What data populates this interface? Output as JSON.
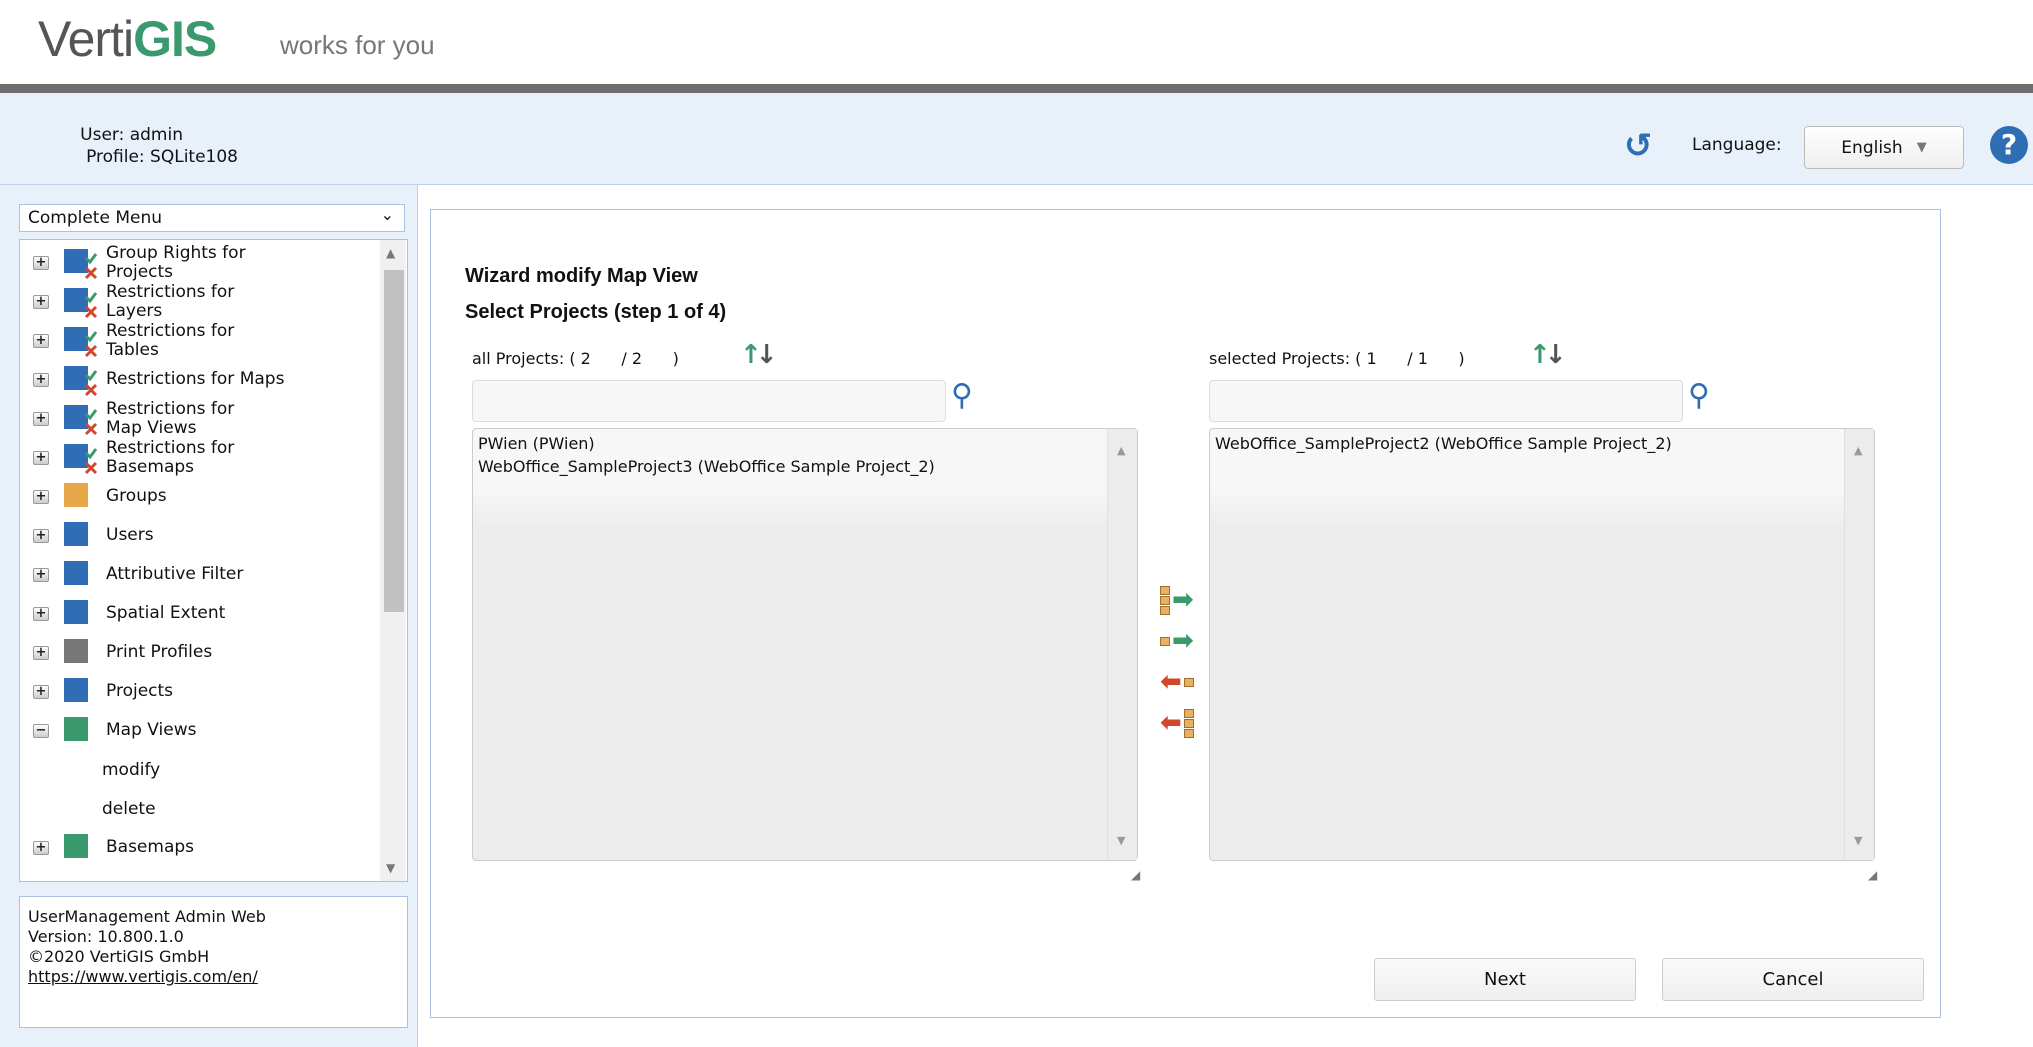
{
  "header": {
    "logo_text": "VertiGIS",
    "tagline": "works for you"
  },
  "user": {
    "user_line": "User: admin",
    "profile_line": "Profile: SQLite108"
  },
  "toolbar": {
    "refresh_icon": "refresh-icon",
    "language_label": "Language:",
    "language_value": "English",
    "help_icon": "help-icon"
  },
  "sidebar": {
    "menu_select": "Complete Menu",
    "items": [
      {
        "label": "Group Rights for Projects",
        "icon": "group-rights-projects-icon",
        "expanded": false
      },
      {
        "label": "Restrictions for Layers",
        "icon": "restrictions-layers-icon",
        "expanded": false
      },
      {
        "label": "Restrictions for Tables",
        "icon": "restrictions-tables-icon",
        "expanded": false
      },
      {
        "label": "Restrictions for Maps",
        "icon": "restrictions-maps-icon",
        "expanded": false
      },
      {
        "label": "Restrictions for Map Views",
        "icon": "restrictions-map-views-icon",
        "expanded": false
      },
      {
        "label": "Restrictions for Basemaps",
        "icon": "restrictions-basemaps-icon",
        "expanded": false
      },
      {
        "label": "Groups",
        "icon": "groups-icon",
        "expanded": false
      },
      {
        "label": "Users",
        "icon": "user-icon",
        "expanded": false
      },
      {
        "label": "Attributive Filter",
        "icon": "attributive-filter-icon",
        "expanded": false
      },
      {
        "label": "Spatial Extent",
        "icon": "spatial-extent-icon",
        "expanded": false
      },
      {
        "label": "Print Profiles",
        "icon": "printer-icon",
        "expanded": false
      },
      {
        "label": "Projects",
        "icon": "projects-icon",
        "expanded": false
      },
      {
        "label": "Map Views",
        "icon": "map-views-icon",
        "expanded": true
      },
      {
        "label": "Basemaps",
        "icon": "basemaps-icon",
        "expanded": false
      }
    ],
    "subitems": [
      "modify",
      "delete"
    ],
    "footer": {
      "app": "UserManagement Admin Web",
      "version": "Version: 10.800.1.0",
      "copyright": "©2020 VertiGIS GmbH",
      "link": "https://www.vertigis.com/en/"
    }
  },
  "wizard": {
    "title": "Wizard modify Map View",
    "step": "Select Projects (step 1 of 4)",
    "all": {
      "label": "all Projects:",
      "shown": "2",
      "total": "2",
      "search_value": "",
      "items": [
        "PWien (PWien)",
        "WebOffice_SampleProject3 (WebOffice Sample Project_2)"
      ]
    },
    "selected": {
      "label": "selected Projects:",
      "shown": "1",
      "total": "1",
      "search_value": "",
      "items": [
        "WebOffice_SampleProject2 (WebOffice Sample Project_2)"
      ]
    },
    "next_label": "Next",
    "cancel_label": "Cancel"
  },
  "colors": {
    "brand_green": "#3a9a6e",
    "accent_blue": "#2f6db5",
    "remove_red": "#d0482c",
    "panel_bg": "#e8f0f9"
  }
}
